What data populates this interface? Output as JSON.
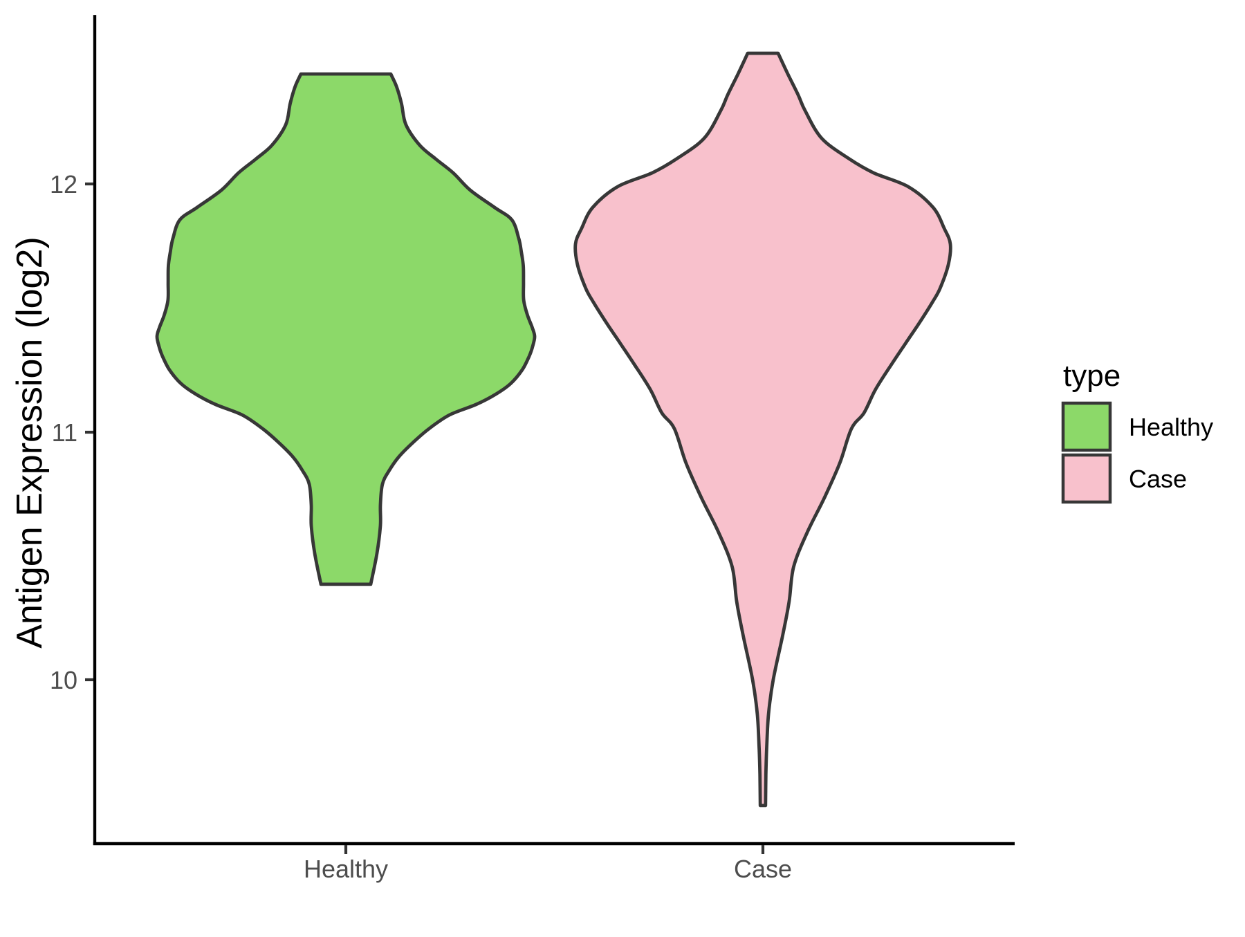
{
  "chart_data": {
    "type": "violin",
    "title": "",
    "xlabel": "",
    "ylabel": "Antigen Expression (log2)",
    "categories": [
      "Healthy",
      "Case"
    ],
    "y_ticks": [
      "12",
      "11",
      "10"
    ],
    "y_tick_values": [
      12,
      11,
      10
    ],
    "ylim_shown": [
      9.33,
      12.68
    ],
    "grid": "off",
    "legend": {
      "title": "type",
      "position": "right",
      "entries": [
        {
          "label": "Healthy",
          "color": "#8CD969"
        },
        {
          "label": "Case",
          "color": "#F8C1CC"
        }
      ]
    },
    "style": {
      "outline_color": "#373737",
      "axis_line_color": "#000000",
      "tick_mark_color": "#333333",
      "axis_text_color": "#4D4D4D",
      "title_text_color": "#000000",
      "background": "#FFFFFF"
    },
    "violins": [
      {
        "category": "Healthy",
        "fill": "#8CD969",
        "profile": [
          [
            12.444,
            0.238
          ],
          [
            12.394,
            0.268
          ],
          [
            12.324,
            0.295
          ],
          [
            12.24,
            0.318
          ],
          [
            12.156,
            0.392
          ],
          [
            12.101,
            0.476
          ],
          [
            12.045,
            0.568
          ],
          [
            11.975,
            0.659
          ],
          [
            11.905,
            0.788
          ],
          [
            11.855,
            0.879
          ],
          [
            11.779,
            0.916
          ],
          [
            11.723,
            0.93
          ],
          [
            11.668,
            0.94
          ],
          [
            11.6,
            0.941
          ],
          [
            11.53,
            0.942
          ],
          [
            11.47,
            0.962
          ],
          [
            11.42,
            0.987
          ],
          [
            11.383,
            1.0
          ],
          [
            11.34,
            0.988
          ],
          [
            11.304,
            0.971
          ],
          [
            11.249,
            0.934
          ],
          [
            11.193,
            0.872
          ],
          [
            11.151,
            0.795
          ],
          [
            11.109,
            0.689
          ],
          [
            11.067,
            0.549
          ],
          [
            11.011,
            0.44
          ],
          [
            10.955,
            0.355
          ],
          [
            10.899,
            0.282
          ],
          [
            10.844,
            0.231
          ],
          [
            10.788,
            0.194
          ],
          [
            10.704,
            0.183
          ],
          [
            10.62,
            0.183
          ],
          [
            10.508,
            0.165
          ],
          [
            10.383,
            0.132
          ]
        ]
      },
      {
        "category": "Case",
        "fill": "#F8C1CC",
        "profile": [
          [
            12.528,
            0.081
          ],
          [
            12.444,
            0.133
          ],
          [
            12.36,
            0.188
          ],
          [
            12.296,
            0.225
          ],
          [
            12.184,
            0.314
          ],
          [
            12.101,
            0.461
          ],
          [
            12.045,
            0.59
          ],
          [
            11.989,
            0.775
          ],
          [
            11.905,
            0.908
          ],
          [
            11.821,
            0.967
          ],
          [
            11.757,
            1.0
          ],
          [
            11.673,
            0.989
          ],
          [
            11.578,
            0.945
          ],
          [
            11.522,
            0.904
          ],
          [
            11.438,
            0.834
          ],
          [
            11.355,
            0.76
          ],
          [
            11.271,
            0.686
          ],
          [
            11.17,
            0.601
          ],
          [
            11.075,
            0.539
          ],
          [
            11.011,
            0.472
          ],
          [
            10.872,
            0.41
          ],
          [
            10.732,
            0.328
          ],
          [
            10.592,
            0.236
          ],
          [
            10.453,
            0.164
          ],
          [
            10.313,
            0.14
          ],
          [
            10.182,
            0.107
          ],
          [
            9.997,
            0.055
          ],
          [
            9.858,
            0.03
          ],
          [
            9.718,
            0.02
          ],
          [
            9.615,
            0.016
          ],
          [
            9.489,
            0.014
          ]
        ]
      }
    ]
  }
}
